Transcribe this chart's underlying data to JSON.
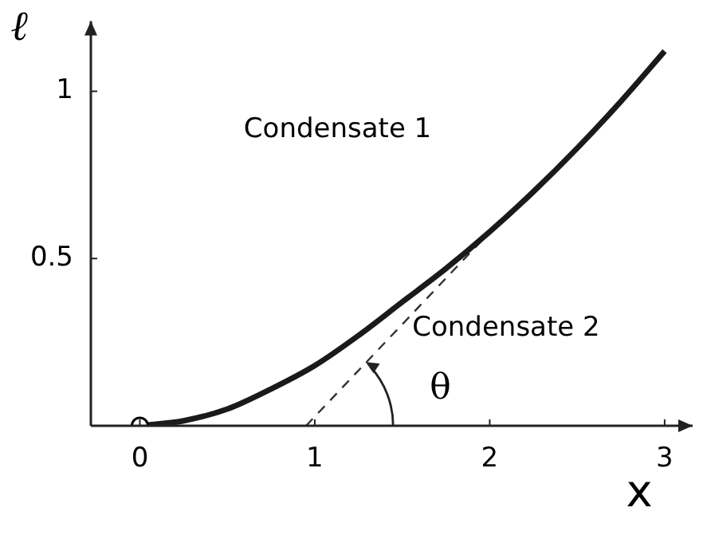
{
  "chart_data": {
    "type": "line",
    "xlabel": "x",
    "ylabel": "ℓ",
    "xlim": [
      -0.28,
      3.16
    ],
    "ylim": [
      0,
      1.21
    ],
    "xticks": [
      0,
      1,
      2,
      3
    ],
    "yticks": [
      {
        "value": 0,
        "label": null
      },
      0.5,
      1
    ],
    "grid": false,
    "legend": false,
    "series": [
      {
        "color": "#1a1a1a",
        "x": [
          0,
          0.25,
          0.5,
          0.75,
          1,
          1.25,
          1.5,
          1.75,
          2,
          2.25,
          2.5,
          2.75,
          3
        ],
        "values": [
          0,
          0.015,
          0.05,
          0.11,
          0.18,
          0.27,
          0.37,
          0.47,
          0.58,
          0.7,
          0.83,
          0.97,
          1.12
        ],
        "marker": "none",
        "line_style": "solid"
      },
      {
        "type": "line",
        "color": "#333333",
        "x": [
          0.95,
          2.02
        ],
        "values": [
          0,
          0.59
        ],
        "marker": "none",
        "line_style": "dashed"
      },
      {
        "type": "scatter",
        "color": "#000000",
        "x": [
          0
        ],
        "values": [
          0
        ],
        "marker": "circle"
      }
    ],
    "annotations": [
      "Condensate 1",
      "Condensate 2",
      {
        "text": "θ",
        "x": 1.29,
        "y": 0.19
      }
    ]
  }
}
